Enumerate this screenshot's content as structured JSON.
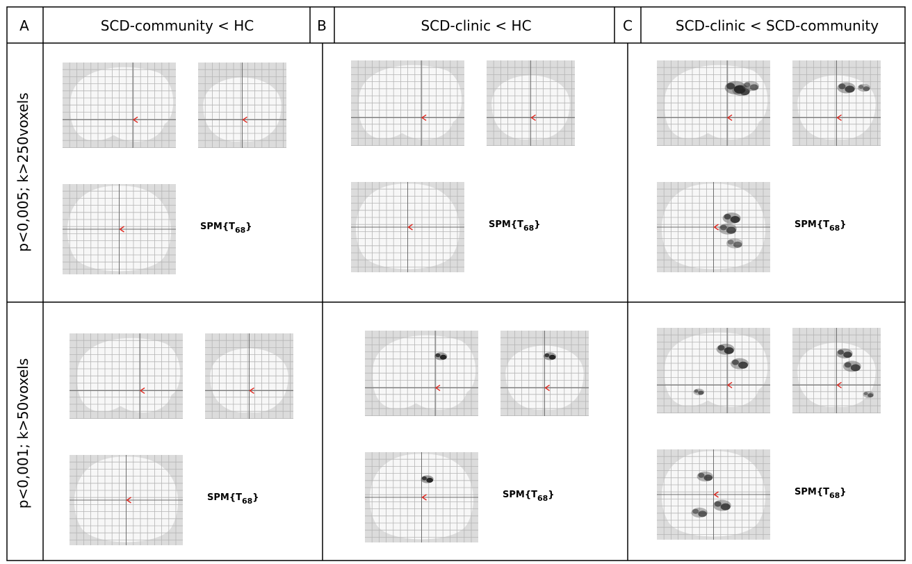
{
  "panels": [
    {
      "letter": "A",
      "title": "SCD-community < HC"
    },
    {
      "letter": "B",
      "title": "SCD-clinic < HC"
    },
    {
      "letter": "C",
      "title": "SCD-clinic < SCD-community"
    }
  ],
  "rows": [
    {
      "label": "p<0,005; k>250voxels"
    },
    {
      "label": "p<0,001; k>50voxels"
    }
  ],
  "spm": {
    "label": "SPM{T",
    "subscript": "68",
    "close": "}"
  },
  "colors": {
    "border": "#000000",
    "grid": "#b5b5b5",
    "panel_bg": "#dcdcdc",
    "brain": "#f7f7f7",
    "marker": "#e0241b",
    "blob": "#262626"
  },
  "clusters": [
    [
      {
        "sag": [],
        "cor": [],
        "axi": []
      },
      {
        "sag": [],
        "cor": [],
        "axi": []
      },
      {
        "sag": [
          [
            0.25,
            0.35,
            1.0,
            0.85
          ],
          [
            0.15,
            0.32,
            1.2,
            0.95
          ],
          [
            0.42,
            0.3,
            0.9,
            0.7
          ]
        ],
        "cor": [
          [
            0.22,
            0.32,
            1.0,
            0.85
          ],
          [
            0.62,
            0.32,
            0.7,
            0.7
          ]
        ],
        "axi": [
          [
            0.25,
            0.52,
            1.0,
            0.8
          ],
          [
            0.32,
            0.4,
            1.0,
            0.9
          ],
          [
            0.37,
            0.68,
            0.9,
            0.65
          ]
        ]
      }
    ],
    [
      {
        "sag": [],
        "cor": [],
        "axi": []
      },
      {
        "sag": [
          [
            0.1,
            0.3,
            0.7,
            1.0
          ]
        ],
        "cor": [
          [
            0.12,
            0.3,
            0.7,
            1.0
          ]
        ],
        "axi": [
          [
            0.1,
            0.3,
            0.7,
            1.0
          ]
        ]
      },
      {
        "sag": [
          [
            -0.03,
            0.25,
            1.0,
            0.9
          ],
          [
            0.22,
            0.42,
            1.0,
            0.85
          ],
          [
            -0.5,
            0.75,
            0.6,
            0.75
          ]
        ],
        "cor": [
          [
            0.18,
            0.3,
            0.9,
            0.85
          ],
          [
            0.35,
            0.45,
            1.0,
            0.85
          ],
          [
            0.72,
            0.78,
            0.6,
            0.7
          ]
        ],
        "axi": [
          [
            -0.15,
            0.3,
            0.9,
            0.8
          ],
          [
            -0.25,
            0.7,
            0.9,
            0.75
          ],
          [
            0.15,
            0.62,
            1.0,
            0.85
          ]
        ]
      }
    ]
  ]
}
